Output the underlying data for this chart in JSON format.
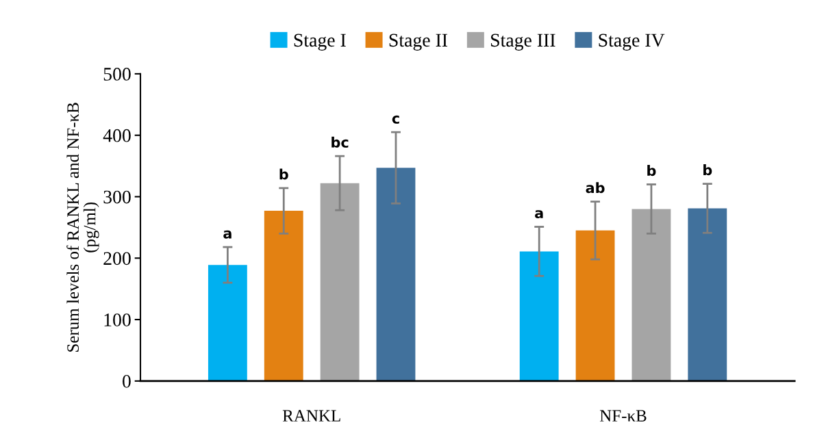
{
  "chart_data": {
    "type": "bar",
    "ylabel": "Serum levels of RANKL and NF-κB\n(pg/ml)",
    "categories": [
      "RANKL",
      "NF-κB"
    ],
    "series": [
      {
        "name": "Stage I",
        "color": "#00b0f0",
        "values": [
          189,
          211
        ],
        "errors": [
          29,
          40
        ],
        "value_labels": [
          "a",
          "a"
        ]
      },
      {
        "name": "Stage II",
        "color": "#e38112",
        "values": [
          277,
          245
        ],
        "errors": [
          37,
          47
        ],
        "value_labels": [
          "b",
          "ab"
        ]
      },
      {
        "name": "Stage III",
        "color": "#a5a5a5",
        "values": [
          322,
          280
        ],
        "errors": [
          44,
          40
        ],
        "value_labels": [
          "bc",
          "b"
        ]
      },
      {
        "name": "Stage IV",
        "color": "#41719c",
        "values": [
          347,
          281
        ],
        "errors": [
          58,
          40
        ],
        "value_labels": [
          "c",
          "b"
        ]
      }
    ],
    "ylim": [
      0,
      500
    ],
    "yticks": [
      0,
      100,
      200,
      300,
      400,
      500
    ],
    "grid": false,
    "legend": "top"
  }
}
